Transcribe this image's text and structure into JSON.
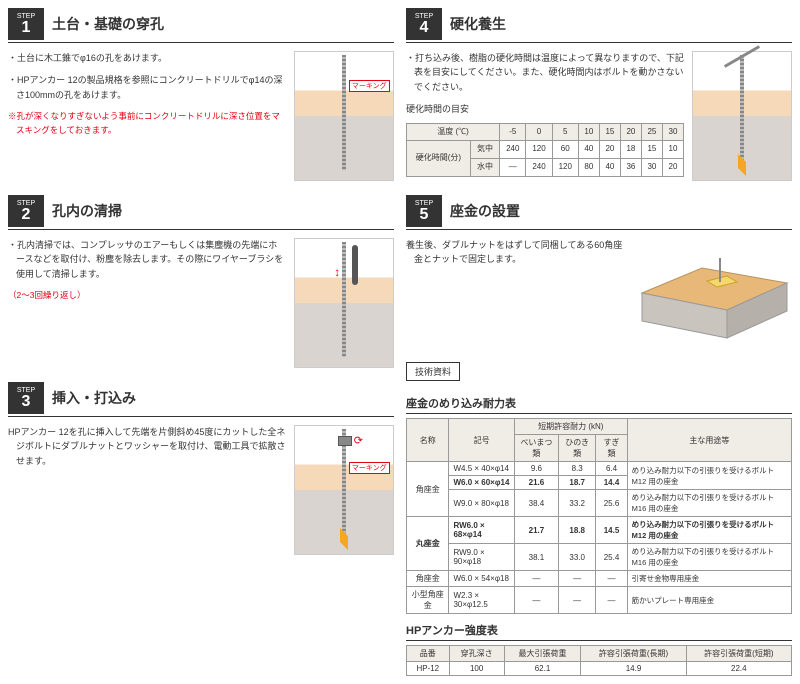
{
  "steps": [
    {
      "num": "1",
      "title": "土台・基礎の穿孔",
      "paras": [
        {
          "t": "・土台に木工錐でφ16の孔をあけます。",
          "red": false
        },
        {
          "t": "・HPアンカー 12の製品規格を参照にコンクリートドリルでφ14の深さ100mmの孔をあけます。",
          "red": false
        },
        {
          "t": "※孔が深くなりすぎないよう事前にコンクリートドリルに深さ位置をマスキングをしておきます。",
          "red": true
        }
      ],
      "marking": "マーキング"
    },
    {
      "num": "2",
      "title": "孔内の清掃",
      "paras": [
        {
          "t": "・孔内清掃では、コンプレッサのエアーもしくは集塵機の先端にホースなどを取付け、粉塵を除去します。その際にワイヤーブラシを使用して清掃します。",
          "red": false
        },
        {
          "t": "（2～3回繰り返し）",
          "red": true
        }
      ]
    },
    {
      "num": "3",
      "title": "挿入・打込み",
      "paras": [
        {
          "t": "HPアンカー 12を孔に挿入して先端を片側斜め45度にカットした全ネジボルトにダブルナットとワッシャーを取付け、電動工具で拡散させます。",
          "red": false
        }
      ],
      "marking": "マーキング"
    },
    {
      "num": "4",
      "title": "硬化養生",
      "paras": [
        {
          "t": "・打ち込み後、樹脂の硬化時間は温度によって異なりますので、下記表を目安にしてください。また、硬化時間内はボルトを動かさないでください。",
          "red": false
        }
      ]
    },
    {
      "num": "5",
      "title": "座金の設置",
      "paras": [
        {
          "t": "養生後、ダブルナットをはずして同梱してある60角座金とナットで固定します。",
          "red": false
        }
      ]
    }
  ],
  "cure_time": {
    "title": "硬化時間の目安",
    "headers": [
      "温度 (℃)",
      "-5",
      "0",
      "5",
      "10",
      "15",
      "20",
      "25",
      "30"
    ],
    "rowgroup": "硬化時間(分)",
    "rows": [
      {
        "label": "気中",
        "vals": [
          "240",
          "120",
          "60",
          "40",
          "20",
          "18",
          "15",
          "10"
        ]
      },
      {
        "label": "水中",
        "vals": [
          "—",
          "240",
          "120",
          "80",
          "40",
          "36",
          "30",
          "20"
        ]
      }
    ]
  },
  "tech_label": "技術資料",
  "table1": {
    "title": "座金のめり込み耐力表",
    "cols_main": [
      "名称",
      "記号",
      "短期許容耐力 (kN)",
      "主な用途等"
    ],
    "cols_sub": [
      "べいまつ類",
      "ひのき類",
      "すぎ類"
    ],
    "groups": [
      {
        "name": "角座金",
        "rows": [
          {
            "spec": "W4.5 × 40×φ14",
            "v": [
              "9.6",
              "8.3",
              "6.4"
            ],
            "note": "めり込み耐力以下の引張りを受けるボルト M12 用の座金",
            "noterows": 2,
            "bold": false
          },
          {
            "spec": "W6.0 × 60×φ14",
            "v": [
              "21.6",
              "18.7",
              "14.4"
            ],
            "bold": true
          },
          {
            "spec": "W9.0 × 80×φ18",
            "v": [
              "38.4",
              "33.2",
              "25.6"
            ],
            "note": "めり込み耐力以下の引張りを受けるボルト M16 用の座金",
            "noterows": 1,
            "bold": false
          }
        ]
      },
      {
        "name": "丸座金",
        "rows": [
          {
            "spec": "RW6.0 × 68×φ14",
            "v": [
              "21.7",
              "18.8",
              "14.5"
            ],
            "note": "めり込み耐力以下の引張りを受けるボルト M12 用の座金",
            "noterows": 1,
            "bold": true
          },
          {
            "spec": "RW9.0 × 90×φ18",
            "v": [
              "38.1",
              "33.0",
              "25.4"
            ],
            "note": "めり込み耐力以下の引張りを受けるボルト M16 用の座金",
            "noterows": 1,
            "bold": false
          }
        ]
      },
      {
        "name": "角座金",
        "rows": [
          {
            "spec": "W6.0 × 54×φ18",
            "v": [
              "—",
              "—",
              "—"
            ],
            "note": "引寄せ金物専用座金",
            "noterows": 1,
            "bold": false
          }
        ]
      },
      {
        "name": "小型角座金",
        "rows": [
          {
            "spec": "W2.3 × 30×φ12.5",
            "v": [
              "—",
              "—",
              "—"
            ],
            "note": "筋かいプレート専用座金",
            "noterows": 1,
            "bold": false
          }
        ]
      }
    ]
  },
  "table2": {
    "title": "HPアンカー強度表",
    "headers": [
      "品番",
      "穿孔深さ",
      "最大引張荷重",
      "許容引張荷重(長期)",
      "許容引張荷重(短期)"
    ],
    "row": [
      "HP-12",
      "100",
      "62.1",
      "14.9",
      "22.4"
    ]
  }
}
